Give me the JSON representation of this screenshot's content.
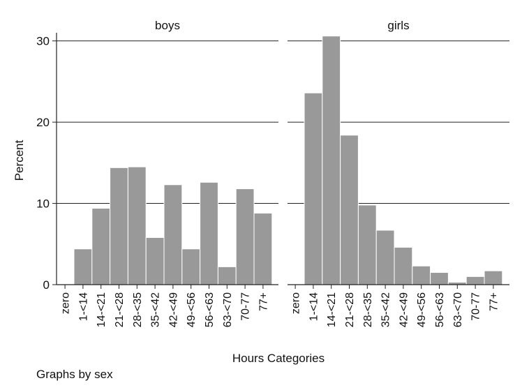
{
  "chart_data": {
    "type": "bar",
    "ylabel": "Percent",
    "xlabel": "Hours Categories",
    "ylim": [
      0,
      31
    ],
    "yticks": [
      0,
      10,
      20,
      30
    ],
    "grid": true,
    "categories": [
      "zero",
      "1-<14",
      "14-<21",
      "21-<28",
      "28-<35",
      "35-<42",
      "42-<49",
      "49-<56",
      "56-<63",
      "63-<70",
      "70-77",
      "77+"
    ],
    "panels": [
      {
        "title": "boys",
        "values": [
          0,
          4.4,
          9.4,
          14.4,
          14.5,
          5.8,
          12.3,
          4.4,
          12.6,
          2.2,
          11.8,
          8.8
        ]
      },
      {
        "title": "girls",
        "values": [
          0,
          23.6,
          30.6,
          18.4,
          9.8,
          6.7,
          4.6,
          2.3,
          1.5,
          0.3,
          1.0,
          1.7
        ]
      }
    ],
    "bar_color": "#999999",
    "note": "Graphs by sex"
  }
}
